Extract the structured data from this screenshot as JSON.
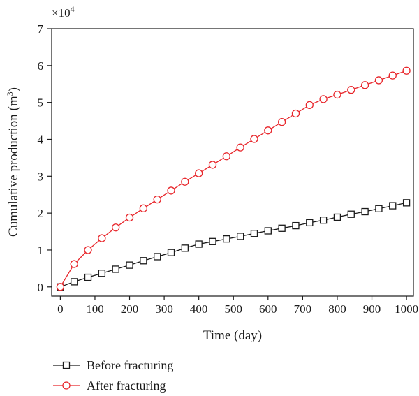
{
  "chart_data": {
    "type": "line",
    "xlabel": "Time (day)",
    "ylabel": "Cumulative production (m",
    "ylabel_sup": "3",
    "ylabel_close": ")",
    "y_multiplier": "×10",
    "y_multiplier_exp": "4",
    "xlim": [
      -25,
      1020
    ],
    "ylim": [
      -0.25,
      7
    ],
    "x_ticks": [
      "0",
      "100",
      "200",
      "300",
      "400",
      "500",
      "600",
      "700",
      "800",
      "900",
      "1000"
    ],
    "y_ticks": [
      "0",
      "1",
      "2",
      "3",
      "4",
      "5",
      "6",
      "7"
    ],
    "grid": false,
    "legend_position": "bottom-left",
    "x": [
      0,
      40,
      80,
      120,
      160,
      200,
      240,
      280,
      320,
      360,
      400,
      440,
      480,
      520,
      560,
      600,
      640,
      680,
      720,
      760,
      800,
      840,
      880,
      920,
      960,
      1000
    ],
    "series": [
      {
        "name": "Before fracturing",
        "color": "#1a1a1a",
        "marker": "square",
        "values": [
          0,
          0.14,
          0.26,
          0.37,
          0.48,
          0.59,
          0.71,
          0.82,
          0.93,
          1.05,
          1.16,
          1.23,
          1.3,
          1.37,
          1.45,
          1.52,
          1.59,
          1.66,
          1.74,
          1.81,
          1.89,
          1.97,
          2.04,
          2.12,
          2.2,
          2.28
        ]
      },
      {
        "name": "After fracturing",
        "color": "#e8262b",
        "marker": "circle",
        "values": [
          0,
          0.62,
          1.0,
          1.32,
          1.61,
          1.88,
          2.13,
          2.37,
          2.61,
          2.85,
          3.08,
          3.31,
          3.54,
          3.78,
          4.01,
          4.24,
          4.47,
          4.7,
          4.93,
          5.09,
          5.21,
          5.34,
          5.47,
          5.6,
          5.73,
          5.86
        ]
      }
    ]
  }
}
